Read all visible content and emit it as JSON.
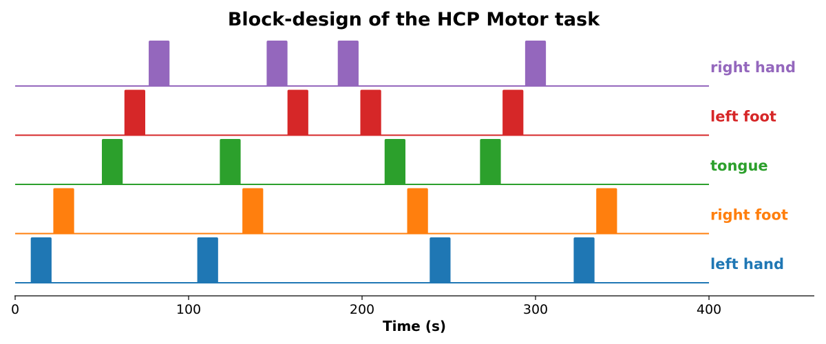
{
  "chart_data": {
    "type": "bar",
    "title": "Block-design of the HCP Motor task",
    "xlabel": "Time (s)",
    "ylabel": "",
    "xlim": [
      0,
      460
    ],
    "series_xmax": 400,
    "xticks": [
      0,
      100,
      200,
      300,
      400
    ],
    "grid": false,
    "legend": "labels at right end of each row",
    "block_duration": 12,
    "series": [
      {
        "name": "left hand",
        "color": "#1f77b4",
        "onsets": [
          9,
          105,
          239,
          322
        ]
      },
      {
        "name": "right foot",
        "color": "#ff7f0e",
        "onsets": [
          22,
          131,
          226,
          335
        ]
      },
      {
        "name": "tongue",
        "color": "#2ca02c",
        "onsets": [
          50,
          118,
          213,
          268
        ]
      },
      {
        "name": "left foot",
        "color": "#d62728",
        "onsets": [
          63,
          157,
          199,
          281
        ]
      },
      {
        "name": "right hand",
        "color": "#9467bd",
        "onsets": [
          77,
          145,
          186,
          294
        ]
      }
    ]
  }
}
